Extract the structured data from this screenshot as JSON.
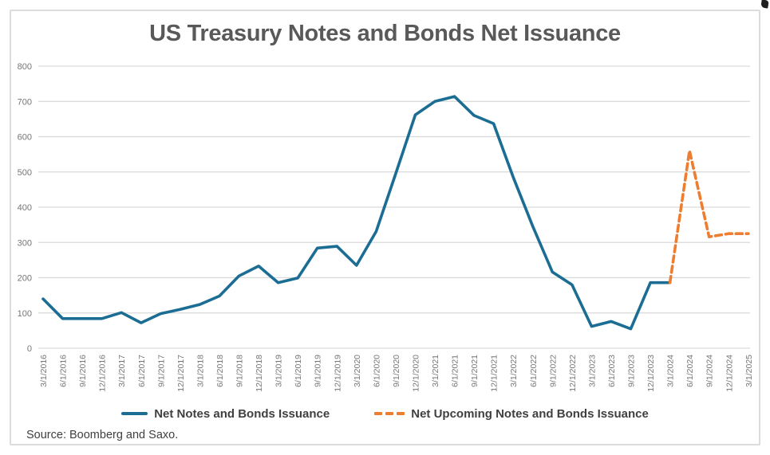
{
  "chart": {
    "title": "US Treasury Notes and Bonds Net Issuance"
  },
  "footer": {
    "source": "Source: Boomberg and Saxo."
  },
  "colors": {
    "actual_series": "#1C6D93",
    "upcoming_series": "#ED7D31",
    "gridline": "#D9D9D9",
    "axis_text": "#767676",
    "title_text": "#595959",
    "legend_text": "#404040",
    "frame_border": "#DCDCDC"
  },
  "chart_data": {
    "type": "line",
    "title": "US Treasury Notes and Bonds Net Issuance",
    "x": [
      "3/1/2016",
      "6/1/2016",
      "9/1/2016",
      "12/1/2016",
      "3/1/2017",
      "6/1/2017",
      "9/1/2017",
      "12/1/2017",
      "3/1/2018",
      "6/1/2018",
      "9/1/2018",
      "12/1/2018",
      "3/1/2019",
      "6/1/2019",
      "9/1/2019",
      "12/1/2019",
      "3/1/2020",
      "6/1/2020",
      "9/1/2020",
      "12/1/2020",
      "3/1/2021",
      "6/1/2021",
      "9/1/2021",
      "12/1/2021",
      "3/1/2022",
      "6/1/2022",
      "9/1/2022",
      "12/1/2022",
      "3/1/2023",
      "6/1/2023",
      "9/1/2023",
      "12/1/2023",
      "3/1/2024",
      "6/1/2024",
      "9/1/2024",
      "12/1/2024",
      "3/1/2025"
    ],
    "series": [
      {
        "name": "Net Notes and Bonds Issuance",
        "style": "solid",
        "color": "#1C6D93",
        "values": [
          140,
          84,
          84,
          84,
          101,
          72,
          98,
          110,
          124,
          148,
          205,
          233,
          186,
          199,
          284,
          289,
          235,
          331,
          495,
          662,
          700,
          714,
          660,
          637,
          485,
          345,
          216,
          180,
          62,
          76,
          55,
          186,
          186,
          null,
          null,
          null,
          null
        ]
      },
      {
        "name": "Net Upcoming Notes and Bonds Issuance",
        "style": "dashed",
        "color": "#ED7D31",
        "values": [
          null,
          null,
          null,
          null,
          null,
          null,
          null,
          null,
          null,
          null,
          null,
          null,
          null,
          null,
          null,
          null,
          null,
          null,
          null,
          null,
          null,
          null,
          null,
          null,
          null,
          null,
          null,
          null,
          null,
          null,
          null,
          null,
          186,
          560,
          316,
          325,
          325
        ]
      }
    ],
    "ylabel": "",
    "xlabel": "",
    "ylim": [
      0,
      800
    ],
    "y_ticks": [
      0,
      100,
      200,
      300,
      400,
      500,
      600,
      700,
      800
    ],
    "grid": "horizontal",
    "legend_position": "bottom"
  }
}
